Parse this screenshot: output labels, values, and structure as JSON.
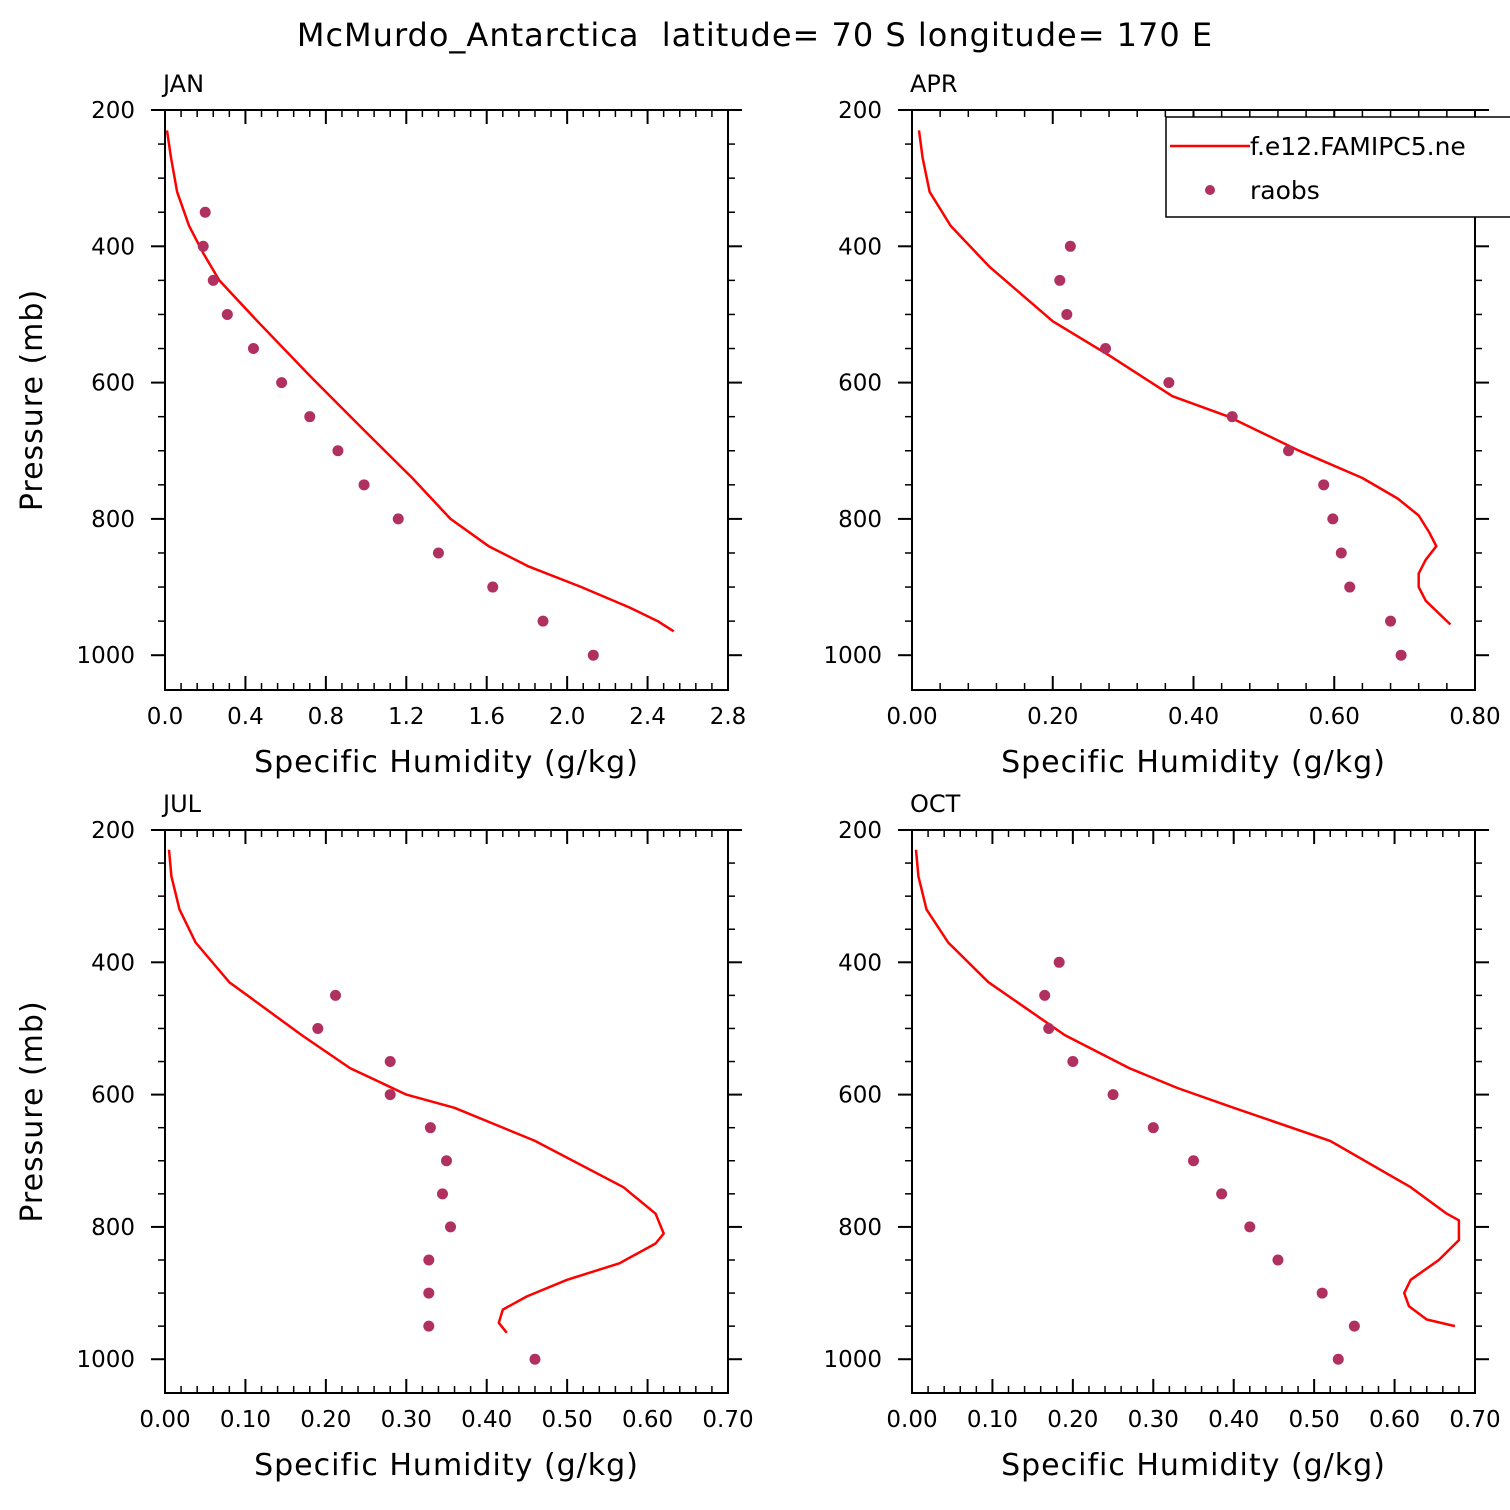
{
  "figure": {
    "title": "McMurdo_Antarctica  latitude= 70 S longitude= 170 E"
  },
  "legend": {
    "model_label": "f.e12.FAMIPC5.ne",
    "obs_label": "raobs",
    "model_color": "#ff0000",
    "obs_color": "#b03060"
  },
  "chart_data": [
    {
      "type": "line",
      "panel": "JAN",
      "xlabel": "Specific Humidity (g/kg)",
      "ylabel": "Pressure (mb)",
      "xlim": [
        0,
        2.8
      ],
      "ylim": [
        1025,
        200
      ],
      "y_reversed": true,
      "xticks": [
        "0.0",
        "0.4",
        "0.8",
        "1.2",
        "1.6",
        "2.0",
        "2.4",
        "2.8"
      ],
      "yticks": [
        "200",
        "400",
        "600",
        "800",
        "1000"
      ],
      "series": [
        {
          "name": "f.e12.FAMIPC5.ne",
          "kind": "line",
          "x": [
            0.01,
            0.03,
            0.06,
            0.12,
            0.19,
            0.27,
            0.46,
            0.72,
            0.99,
            1.23,
            1.42,
            1.61,
            1.81,
            2.07,
            2.31,
            2.45,
            2.53
          ],
          "y": [
            230,
            270,
            320,
            370,
            410,
            450,
            510,
            590,
            670,
            740,
            800,
            840,
            870,
            900,
            930,
            950,
            965
          ]
        },
        {
          "name": "raobs",
          "kind": "scatter",
          "x": [
            0.2,
            0.19,
            0.24,
            0.31,
            0.44,
            0.58,
            0.72,
            0.86,
            0.99,
            1.16,
            1.36,
            1.63,
            1.88,
            2.13
          ],
          "y": [
            350,
            400,
            450,
            500,
            550,
            600,
            650,
            700,
            750,
            800,
            850,
            900,
            950,
            1000
          ]
        }
      ]
    },
    {
      "type": "line",
      "panel": "APR",
      "xlabel": "Specific Humidity (g/kg)",
      "ylabel": "",
      "xlim": [
        0,
        0.8
      ],
      "ylim": [
        1025,
        200
      ],
      "y_reversed": true,
      "xticks": [
        "0.00",
        "0.20",
        "0.40",
        "0.60",
        "0.80"
      ],
      "yticks": [
        "200",
        "400",
        "600",
        "800",
        "1000"
      ],
      "series": [
        {
          "name": "f.e12.FAMIPC5.ne",
          "kind": "line",
          "x": [
            0.01,
            0.015,
            0.025,
            0.055,
            0.11,
            0.2,
            0.28,
            0.37,
            0.45,
            0.55,
            0.64,
            0.69,
            0.72,
            0.735,
            0.745,
            0.73,
            0.72,
            0.72,
            0.73,
            0.765
          ],
          "y": [
            230,
            270,
            320,
            370,
            430,
            510,
            560,
            620,
            650,
            700,
            740,
            770,
            795,
            820,
            840,
            860,
            880,
            900,
            920,
            955
          ]
        },
        {
          "name": "raobs",
          "kind": "scatter",
          "x": [
            0.225,
            0.21,
            0.22,
            0.275,
            0.365,
            0.455,
            0.535,
            0.585,
            0.598,
            0.61,
            0.622,
            0.68,
            0.695
          ],
          "y": [
            400,
            450,
            500,
            550,
            600,
            650,
            700,
            750,
            800,
            850,
            900,
            950,
            1000
          ]
        }
      ]
    },
    {
      "type": "line",
      "panel": "JUL",
      "xlabel": "Specific Humidity (g/kg)",
      "ylabel": "Pressure (mb)",
      "xlim": [
        0,
        0.7
      ],
      "ylim": [
        1025,
        200
      ],
      "y_reversed": true,
      "xticks": [
        "0.00",
        "0.10",
        "0.20",
        "0.30",
        "0.40",
        "0.50",
        "0.60",
        "0.70"
      ],
      "yticks": [
        "200",
        "400",
        "600",
        "800",
        "1000"
      ],
      "series": [
        {
          "name": "f.e12.FAMIPC5.ne",
          "kind": "line",
          "x": [
            0.005,
            0.008,
            0.018,
            0.038,
            0.08,
            0.17,
            0.23,
            0.3,
            0.36,
            0.46,
            0.57,
            0.61,
            0.62,
            0.61,
            0.565,
            0.5,
            0.45,
            0.42,
            0.415,
            0.425
          ],
          "y": [
            230,
            270,
            320,
            370,
            430,
            510,
            560,
            600,
            620,
            670,
            740,
            780,
            810,
            825,
            855,
            880,
            905,
            925,
            945,
            960
          ]
        },
        {
          "name": "raobs",
          "kind": "scatter",
          "x": [
            0.212,
            0.19,
            0.28,
            0.28,
            0.33,
            0.35,
            0.345,
            0.355,
            0.328,
            0.328,
            0.328,
            0.46
          ],
          "y": [
            450,
            500,
            550,
            600,
            650,
            700,
            750,
            800,
            850,
            900,
            950,
            1000
          ]
        }
      ]
    },
    {
      "type": "line",
      "panel": "OCT",
      "xlabel": "Specific Humidity (g/kg)",
      "ylabel": "",
      "xlim": [
        0,
        0.7
      ],
      "ylim": [
        1025,
        200
      ],
      "y_reversed": true,
      "xticks": [
        "0.00",
        "0.10",
        "0.20",
        "0.30",
        "0.40",
        "0.50",
        "0.60",
        "0.70"
      ],
      "yticks": [
        "200",
        "400",
        "600",
        "800",
        "1000"
      ],
      "series": [
        {
          "name": "f.e12.FAMIPC5.ne",
          "kind": "line",
          "x": [
            0.005,
            0.008,
            0.018,
            0.045,
            0.095,
            0.19,
            0.27,
            0.33,
            0.4,
            0.52,
            0.62,
            0.665,
            0.68,
            0.68,
            0.655,
            0.62,
            0.612,
            0.618,
            0.64,
            0.675
          ],
          "y": [
            230,
            270,
            320,
            370,
            430,
            510,
            560,
            590,
            620,
            670,
            740,
            780,
            790,
            820,
            850,
            880,
            900,
            920,
            940,
            950
          ]
        },
        {
          "name": "raobs",
          "kind": "scatter",
          "x": [
            0.183,
            0.165,
            0.17,
            0.2,
            0.25,
            0.3,
            0.35,
            0.385,
            0.42,
            0.455,
            0.51,
            0.55,
            0.53
          ],
          "y": [
            400,
            450,
            500,
            550,
            600,
            650,
            700,
            750,
            800,
            850,
            900,
            950,
            1000
          ]
        }
      ]
    }
  ]
}
